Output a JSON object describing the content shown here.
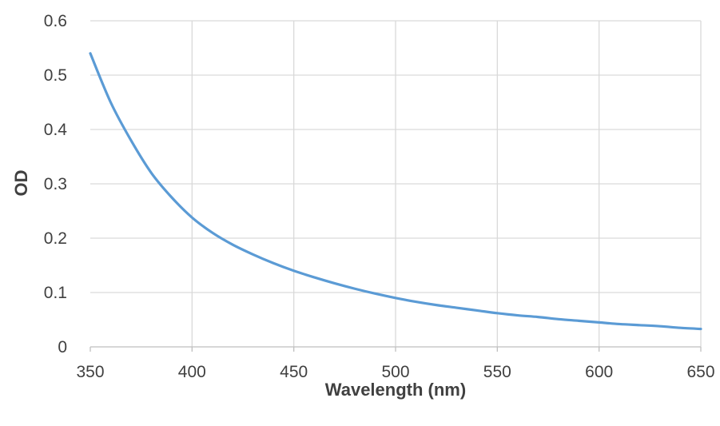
{
  "chart_data": {
    "type": "line",
    "title": "",
    "xlabel": "Wavelength (nm)",
    "ylabel": "OD",
    "xlim": [
      350,
      650
    ],
    "ylim": [
      0,
      0.6
    ],
    "x_ticks": [
      "350",
      "400",
      "450",
      "500",
      "550",
      "600",
      "650"
    ],
    "y_ticks": [
      "0",
      "0.1",
      "0.2",
      "0.3",
      "0.4",
      "0.5",
      "0.6"
    ],
    "grid": true,
    "legend": "none",
    "series": [
      {
        "color": "#5b9bd5",
        "x": [
          350,
          360,
          370,
          380,
          390,
          400,
          410,
          420,
          430,
          440,
          450,
          460,
          470,
          480,
          490,
          500,
          510,
          520,
          530,
          540,
          550,
          560,
          570,
          580,
          590,
          600,
          610,
          620,
          630,
          640,
          650
        ],
        "y": [
          0.54,
          0.45,
          0.38,
          0.32,
          0.275,
          0.238,
          0.21,
          0.188,
          0.17,
          0.154,
          0.14,
          0.128,
          0.117,
          0.107,
          0.098,
          0.09,
          0.083,
          0.077,
          0.072,
          0.067,
          0.062,
          0.058,
          0.055,
          0.051,
          0.048,
          0.045,
          0.042,
          0.04,
          0.038,
          0.035,
          0.033
        ]
      }
    ]
  }
}
